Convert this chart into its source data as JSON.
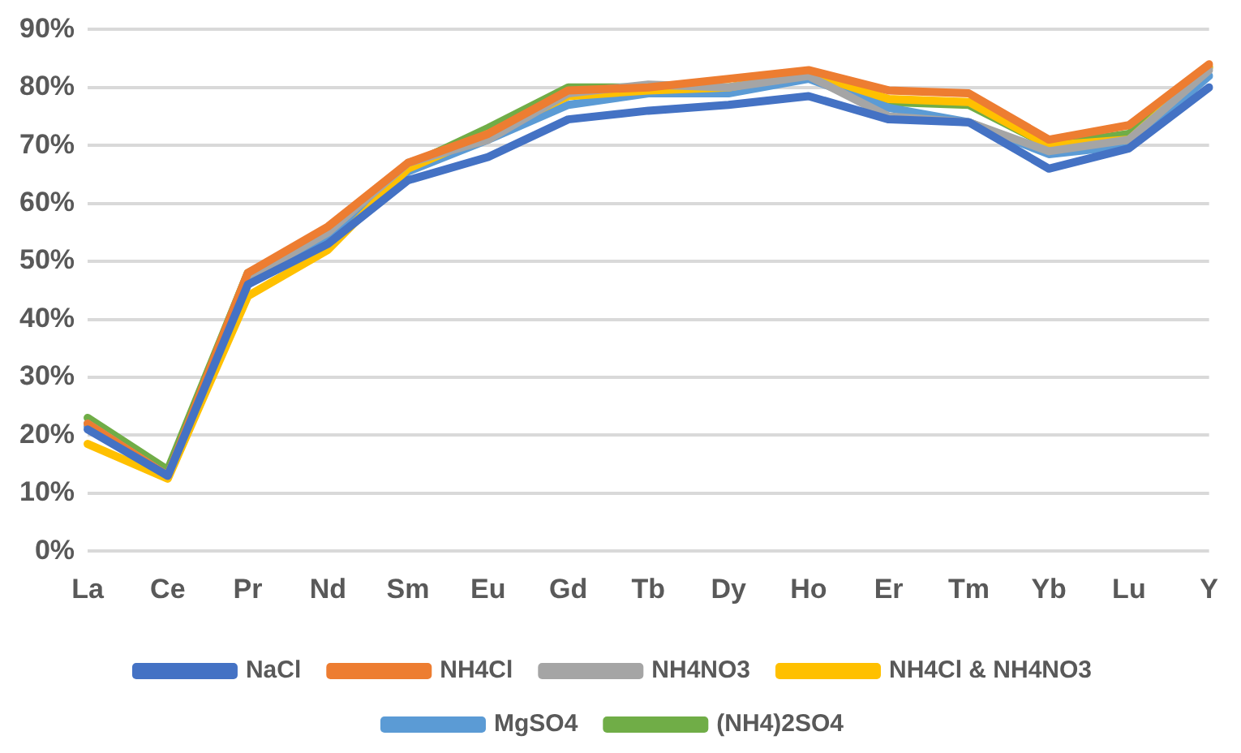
{
  "chart_data": {
    "type": "line",
    "categories": [
      "La",
      "Ce",
      "Pr",
      "Nd",
      "Sm",
      "Eu",
      "Gd",
      "Tb",
      "Dy",
      "Ho",
      "Er",
      "Tm",
      "Yb",
      "Lu",
      "Y"
    ],
    "series": [
      {
        "name": "NaCl",
        "color": "#4472c4",
        "values": [
          21,
          13,
          46,
          53,
          64,
          68,
          74.5,
          76,
          77,
          78.5,
          74.5,
          74,
          66,
          69.5,
          80
        ]
      },
      {
        "name": "NH4Cl",
        "color": "#ed7d31",
        "values": [
          22,
          13,
          48,
          56,
          67,
          72,
          79.5,
          80,
          81.5,
          83,
          79.5,
          79,
          71,
          73.5,
          84
        ]
      },
      {
        "name": "NH4NO3",
        "color": "#a5a5a5",
        "values": [
          22,
          13,
          47,
          55,
          67,
          71,
          79,
          80.5,
          80,
          82,
          75,
          74,
          69,
          71,
          83
        ]
      },
      {
        "name": "NH4Cl & NH4NO3",
        "color": "#ffc000",
        "values": [
          18.5,
          12.5,
          44,
          52,
          66,
          72,
          78.5,
          79.5,
          80,
          82.5,
          78,
          77.5,
          70,
          71,
          83.5
        ]
      },
      {
        "name": "MgSO4",
        "color": "#5b9bd5",
        "values": [
          21.5,
          13,
          46,
          54,
          65.5,
          71,
          77,
          79,
          79,
          81.5,
          76.5,
          74,
          68.5,
          70,
          82
        ]
      },
      {
        "name": "(NH4)2SO4",
        "color": "#70ad47",
        "values": [
          23,
          14,
          48,
          55,
          66.5,
          73,
          80,
          80,
          80,
          82.5,
          77.5,
          77,
          70,
          72,
          83.5
        ]
      }
    ],
    "ylim": [
      0,
      90
    ],
    "yticks": [
      {
        "value": 0,
        "label": "0%"
      },
      {
        "value": 10,
        "label": "10%"
      },
      {
        "value": 20,
        "label": "20%"
      },
      {
        "value": 30,
        "label": "30%"
      },
      {
        "value": 40,
        "label": "40%"
      },
      {
        "value": 50,
        "label": "50%"
      },
      {
        "value": 60,
        "label": "60%"
      },
      {
        "value": 70,
        "label": "70%"
      },
      {
        "value": 80,
        "label": "80%"
      },
      {
        "value": 90,
        "label": "90%"
      }
    ],
    "grid": "y",
    "legend": "bottom",
    "marker": "none",
    "line_style": "solid"
  }
}
